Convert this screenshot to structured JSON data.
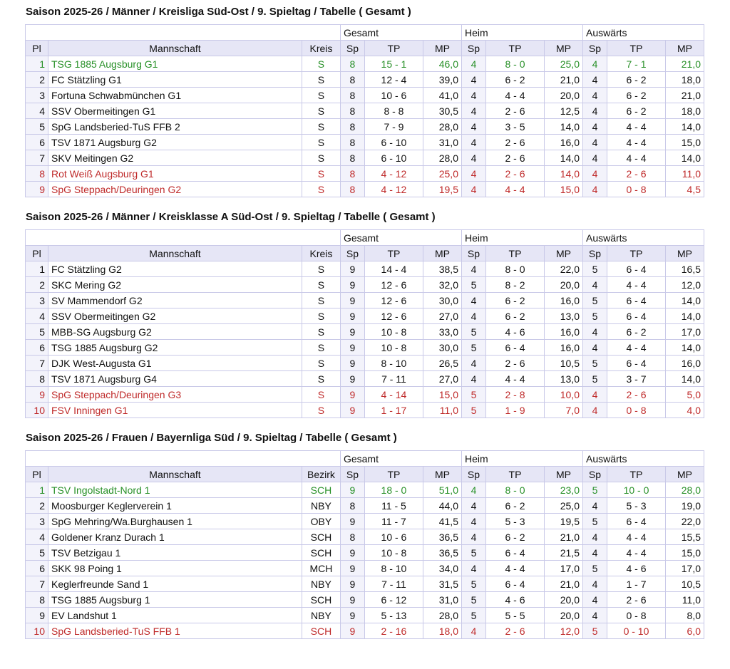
{
  "colors": {
    "border": "#c9c9e8",
    "header_bg": "#e6e6f6",
    "column_tint": "#f3f3fb",
    "first_place_text": "#289028",
    "relegation_text": "#bf2a2a",
    "text": "#111111",
    "background": "#ffffff"
  },
  "sections": [
    {
      "title": "Saison 2025-26 / Männer / Kreisliga Süd-Ost / 9. Spieltag / Tabelle ( Gesamt )",
      "group_headers": [
        "Gesamt",
        "Heim",
        "Auswärts"
      ],
      "column_headers": [
        "Pl",
        "Mannschaft",
        "Kreis",
        "Sp",
        "TP",
        "MP",
        "Sp",
        "TP",
        "MP",
        "Sp",
        "TP",
        "MP"
      ],
      "rows": [
        {
          "highlight": "green",
          "cells": [
            "1",
            "TSG 1885 Augsburg G1",
            "S",
            "8",
            "15 - 1",
            "46,0",
            "4",
            "8 - 0",
            "25,0",
            "4",
            "7 - 1",
            "21,0"
          ]
        },
        {
          "highlight": "",
          "cells": [
            "2",
            "FC Stätzling G1",
            "S",
            "8",
            "12 - 4",
            "39,0",
            "4",
            "6 - 2",
            "21,0",
            "4",
            "6 - 2",
            "18,0"
          ]
        },
        {
          "highlight": "",
          "cells": [
            "3",
            "Fortuna Schwabmünchen G1",
            "S",
            "8",
            "10 - 6",
            "41,0",
            "4",
            "4 - 4",
            "20,0",
            "4",
            "6 - 2",
            "21,0"
          ]
        },
        {
          "highlight": "",
          "cells": [
            "4",
            "SSV Obermeitingen G1",
            "S",
            "8",
            "8 - 8",
            "30,5",
            "4",
            "2 - 6",
            "12,5",
            "4",
            "6 - 2",
            "18,0"
          ]
        },
        {
          "highlight": "",
          "cells": [
            "5",
            "SpG Landsberied-TuS FFB 2",
            "S",
            "8",
            "7 - 9",
            "28,0",
            "4",
            "3 - 5",
            "14,0",
            "4",
            "4 - 4",
            "14,0"
          ]
        },
        {
          "highlight": "",
          "cells": [
            "6",
            "TSV 1871 Augsburg G2",
            "S",
            "8",
            "6 - 10",
            "31,0",
            "4",
            "2 - 6",
            "16,0",
            "4",
            "4 - 4",
            "15,0"
          ]
        },
        {
          "highlight": "",
          "cells": [
            "7",
            "SKV Meitingen G2",
            "S",
            "8",
            "6 - 10",
            "28,0",
            "4",
            "2 - 6",
            "14,0",
            "4",
            "4 - 4",
            "14,0"
          ]
        },
        {
          "highlight": "red",
          "cells": [
            "8",
            "Rot Weiß Augsburg G1",
            "S",
            "8",
            "4 - 12",
            "25,0",
            "4",
            "2 - 6",
            "14,0",
            "4",
            "2 - 6",
            "11,0"
          ]
        },
        {
          "highlight": "red",
          "cells": [
            "9",
            "SpG Steppach/Deuringen G2",
            "S",
            "8",
            "4 - 12",
            "19,5",
            "4",
            "4 - 4",
            "15,0",
            "4",
            "0 - 8",
            "4,5"
          ]
        }
      ]
    },
    {
      "title": "Saison 2025-26 / Männer / Kreisklasse A Süd-Ost / 9. Spieltag / Tabelle ( Gesamt )",
      "group_headers": [
        "Gesamt",
        "Heim",
        "Auswärts"
      ],
      "column_headers": [
        "Pl",
        "Mannschaft",
        "Kreis",
        "Sp",
        "TP",
        "MP",
        "Sp",
        "TP",
        "MP",
        "Sp",
        "TP",
        "MP"
      ],
      "rows": [
        {
          "highlight": "",
          "cells": [
            "1",
            "FC Stätzling G2",
            "S",
            "9",
            "14 - 4",
            "38,5",
            "4",
            "8 - 0",
            "22,0",
            "5",
            "6 - 4",
            "16,5"
          ]
        },
        {
          "highlight": "",
          "cells": [
            "2",
            "SKC Mering G2",
            "S",
            "9",
            "12 - 6",
            "32,0",
            "5",
            "8 - 2",
            "20,0",
            "4",
            "4 - 4",
            "12,0"
          ]
        },
        {
          "highlight": "",
          "cells": [
            "3",
            "SV Mammendorf G2",
            "S",
            "9",
            "12 - 6",
            "30,0",
            "4",
            "6 - 2",
            "16,0",
            "5",
            "6 - 4",
            "14,0"
          ]
        },
        {
          "highlight": "",
          "cells": [
            "4",
            "SSV Obermeitingen G2",
            "S",
            "9",
            "12 - 6",
            "27,0",
            "4",
            "6 - 2",
            "13,0",
            "5",
            "6 - 4",
            "14,0"
          ]
        },
        {
          "highlight": "",
          "cells": [
            "5",
            "MBB-SG Augsburg G2",
            "S",
            "9",
            "10 - 8",
            "33,0",
            "5",
            "4 - 6",
            "16,0",
            "4",
            "6 - 2",
            "17,0"
          ]
        },
        {
          "highlight": "",
          "cells": [
            "6",
            "TSG 1885 Augsburg G2",
            "S",
            "9",
            "10 - 8",
            "30,0",
            "5",
            "6 - 4",
            "16,0",
            "4",
            "4 - 4",
            "14,0"
          ]
        },
        {
          "highlight": "",
          "cells": [
            "7",
            "DJK West-Augusta G1",
            "S",
            "9",
            "8 - 10",
            "26,5",
            "4",
            "2 - 6",
            "10,5",
            "5",
            "6 - 4",
            "16,0"
          ]
        },
        {
          "highlight": "",
          "cells": [
            "8",
            "TSV 1871 Augsburg G4",
            "S",
            "9",
            "7 - 11",
            "27,0",
            "4",
            "4 - 4",
            "13,0",
            "5",
            "3 - 7",
            "14,0"
          ]
        },
        {
          "highlight": "red",
          "cells": [
            "9",
            "SpG Steppach/Deuringen G3",
            "S",
            "9",
            "4 - 14",
            "15,0",
            "5",
            "2 - 8",
            "10,0",
            "4",
            "2 - 6",
            "5,0"
          ]
        },
        {
          "highlight": "red",
          "cells": [
            "10",
            "FSV Inningen G1",
            "S",
            "9",
            "1 - 17",
            "11,0",
            "5",
            "1 - 9",
            "7,0",
            "4",
            "0 - 8",
            "4,0"
          ]
        }
      ]
    },
    {
      "title": "Saison 2025-26 / Frauen / Bayernliga Süd / 9. Spieltag / Tabelle ( Gesamt )",
      "group_headers": [
        "Gesamt",
        "Heim",
        "Auswärts"
      ],
      "column_headers": [
        "Pl",
        "Mannschaft",
        "Bezirk",
        "Sp",
        "TP",
        "MP",
        "Sp",
        "TP",
        "MP",
        "Sp",
        "TP",
        "MP"
      ],
      "rows": [
        {
          "highlight": "green",
          "cells": [
            "1",
            "TSV Ingolstadt-Nord 1",
            "SCH",
            "9",
            "18 - 0",
            "51,0",
            "4",
            "8 - 0",
            "23,0",
            "5",
            "10 - 0",
            "28,0"
          ]
        },
        {
          "highlight": "",
          "cells": [
            "2",
            "Moosburger Keglerverein 1",
            "NBY",
            "8",
            "11 - 5",
            "44,0",
            "4",
            "6 - 2",
            "25,0",
            "4",
            "5 - 3",
            "19,0"
          ]
        },
        {
          "highlight": "",
          "cells": [
            "3",
            "SpG Mehring/Wa.Burghausen 1",
            "OBY",
            "9",
            "11 - 7",
            "41,5",
            "4",
            "5 - 3",
            "19,5",
            "5",
            "6 - 4",
            "22,0"
          ]
        },
        {
          "highlight": "",
          "cells": [
            "4",
            "Goldener Kranz Durach 1",
            "SCH",
            "8",
            "10 - 6",
            "36,5",
            "4",
            "6 - 2",
            "21,0",
            "4",
            "4 - 4",
            "15,5"
          ]
        },
        {
          "highlight": "",
          "cells": [
            "5",
            "TSV Betzigau 1",
            "SCH",
            "9",
            "10 - 8",
            "36,5",
            "5",
            "6 - 4",
            "21,5",
            "4",
            "4 - 4",
            "15,0"
          ]
        },
        {
          "highlight": "",
          "cells": [
            "6",
            "SKK 98 Poing 1",
            "MCH",
            "9",
            "8 - 10",
            "34,0",
            "4",
            "4 - 4",
            "17,0",
            "5",
            "4 - 6",
            "17,0"
          ]
        },
        {
          "highlight": "",
          "cells": [
            "7",
            "Keglerfreunde Sand 1",
            "NBY",
            "9",
            "7 - 11",
            "31,5",
            "5",
            "6 - 4",
            "21,0",
            "4",
            "1 - 7",
            "10,5"
          ]
        },
        {
          "highlight": "",
          "cells": [
            "8",
            "TSG 1885 Augsburg 1",
            "SCH",
            "9",
            "6 - 12",
            "31,0",
            "5",
            "4 - 6",
            "20,0",
            "4",
            "2 - 6",
            "11,0"
          ]
        },
        {
          "highlight": "",
          "cells": [
            "9",
            "EV Landshut 1",
            "NBY",
            "9",
            "5 - 13",
            "28,0",
            "5",
            "5 - 5",
            "20,0",
            "4",
            "0 - 8",
            "8,0"
          ]
        },
        {
          "highlight": "red",
          "cells": [
            "10",
            "SpG Landsberied-TuS FFB 1",
            "SCH",
            "9",
            "2 - 16",
            "18,0",
            "4",
            "2 - 6",
            "12,0",
            "5",
            "0 - 10",
            "6,0"
          ]
        }
      ]
    }
  ]
}
